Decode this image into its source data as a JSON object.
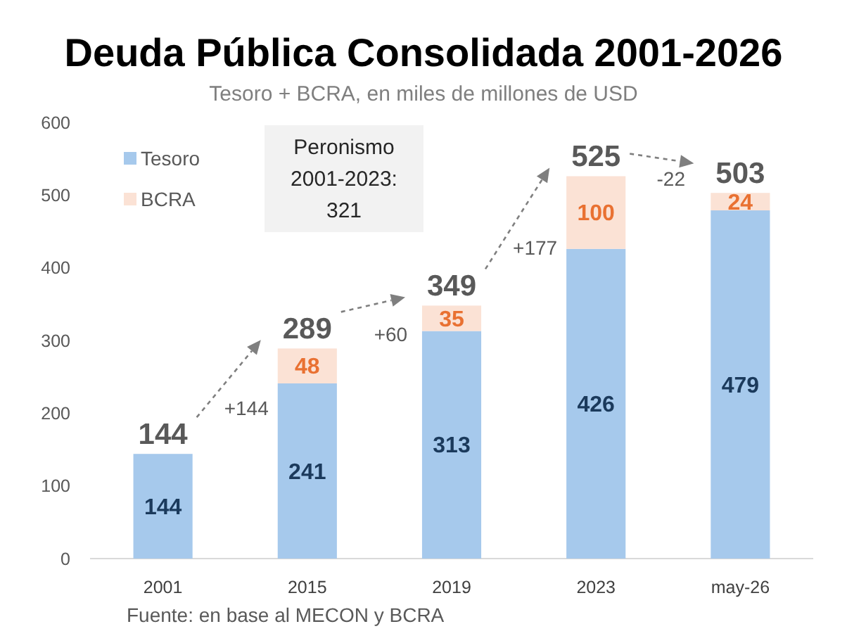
{
  "chart_data": {
    "type": "bar",
    "title": "Deuda Pública Consolidada 2001-2026",
    "subtitle": "Tesoro + BCRA, en miles de millones de USD",
    "categories": [
      "2001",
      "2015",
      "2019",
      "2023",
      "may-26"
    ],
    "series": [
      {
        "name": "Tesoro",
        "color": "#a6c9ec",
        "values": [
          144,
          241,
          313,
          426,
          479
        ]
      },
      {
        "name": "BCRA",
        "color": "#fbe2d5",
        "values": [
          null,
          48,
          35,
          100,
          24
        ]
      }
    ],
    "stacked": true,
    "data_labels": true,
    "totals": [
      "144",
      "289",
      "349",
      "525",
      "503"
    ],
    "ylim": [
      0,
      600
    ],
    "yticks": [
      0,
      100,
      200,
      300,
      400,
      500,
      600
    ],
    "legend": "top left",
    "annotations": [
      "+144",
      "+60",
      "+177",
      "-22",
      "Peronismo 2001-2023: 321",
      "Fuente: en base al MECON y BCRA"
    ]
  }
}
